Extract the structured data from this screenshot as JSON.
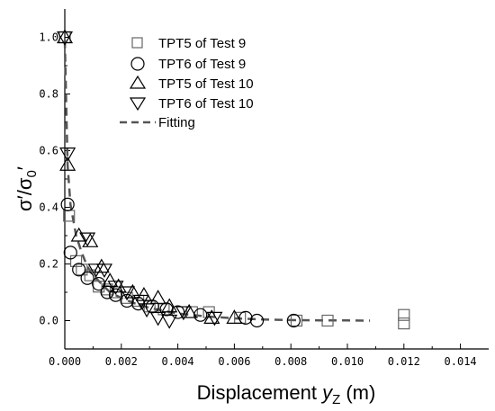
{
  "chart_data": {
    "type": "scatter",
    "title": "",
    "xlabel": {
      "main": "Displacement ",
      "italic": "y",
      "sub": "Z",
      "unit": " (m)"
    },
    "ylabel": {
      "sigma1": "σ′/σ",
      "sub": "0",
      "tail": "′"
    },
    "xlim": [
      0.0,
      0.015
    ],
    "ylim": [
      -0.1,
      1.1
    ],
    "x_ticks": [
      0.0,
      0.002,
      0.004,
      0.006,
      0.008,
      0.01,
      0.012,
      0.014
    ],
    "x_tick_labels": [
      "0.000",
      "0.002",
      "0.004",
      "0.006",
      "0.008",
      "0.010",
      "0.012",
      "0.014"
    ],
    "y_ticks": [
      0.0,
      0.2,
      0.4,
      0.6,
      0.8,
      1.0
    ],
    "y_tick_labels": [
      "0.0",
      "0.2",
      "0.4",
      "0.6",
      "0.8",
      "1.0"
    ],
    "grid": false,
    "legend_position": "top-center",
    "series": [
      {
        "name": "TPT5 of Test 9",
        "marker": "square",
        "color": "#666666",
        "points": [
          [
            0.0,
            1.0
          ],
          [
            0.00015,
            0.37
          ],
          [
            0.0004,
            0.21
          ],
          [
            0.0006,
            0.18
          ],
          [
            0.0009,
            0.16
          ],
          [
            0.0012,
            0.12
          ],
          [
            0.0015,
            0.11
          ],
          [
            0.0018,
            0.1
          ],
          [
            0.0022,
            0.08
          ],
          [
            0.0026,
            0.07
          ],
          [
            0.003,
            0.05
          ],
          [
            0.0035,
            0.04
          ],
          [
            0.0045,
            0.03
          ],
          [
            0.0051,
            0.03
          ],
          [
            0.0062,
            0.01
          ],
          [
            0.0082,
            0.0
          ],
          [
            0.0093,
            0.0
          ],
          [
            0.012,
            0.02
          ],
          [
            0.012,
            -0.01
          ]
        ]
      },
      {
        "name": "TPT6 of Test 9",
        "marker": "circle",
        "color": "#000000",
        "points": [
          [
            0.0001,
            0.41
          ],
          [
            0.0002,
            0.24
          ],
          [
            0.0005,
            0.18
          ],
          [
            0.0008,
            0.15
          ],
          [
            0.0012,
            0.13
          ],
          [
            0.0015,
            0.1
          ],
          [
            0.0018,
            0.09
          ],
          [
            0.0022,
            0.07
          ],
          [
            0.0026,
            0.06
          ],
          [
            0.0031,
            0.05
          ],
          [
            0.0036,
            0.04
          ],
          [
            0.004,
            0.03
          ],
          [
            0.0048,
            0.02
          ],
          [
            0.0064,
            0.01
          ],
          [
            0.0068,
            0.0
          ],
          [
            0.0081,
            0.0
          ]
        ]
      },
      {
        "name": "TPT5 of Test 10",
        "marker": "triangle-up",
        "color": "#000000",
        "points": [
          [
            0.0,
            1.0
          ],
          [
            0.0001,
            0.55
          ],
          [
            0.0005,
            0.3
          ],
          [
            0.0009,
            0.28
          ],
          [
            0.0013,
            0.19
          ],
          [
            0.0016,
            0.14
          ],
          [
            0.0019,
            0.12
          ],
          [
            0.0024,
            0.1
          ],
          [
            0.0028,
            0.09
          ],
          [
            0.0033,
            0.08
          ],
          [
            0.0037,
            0.05
          ],
          [
            0.0044,
            0.03
          ],
          [
            0.0052,
            0.01
          ],
          [
            0.006,
            0.01
          ]
        ]
      },
      {
        "name": "TPT6 of Test 10",
        "marker": "triangle-down",
        "color": "#000000",
        "points": [
          [
            0.0,
            1.0
          ],
          [
            0.0001,
            0.59
          ],
          [
            0.0008,
            0.29
          ],
          [
            0.0011,
            0.18
          ],
          [
            0.0014,
            0.18
          ],
          [
            0.0018,
            0.12
          ],
          [
            0.0022,
            0.1
          ],
          [
            0.0027,
            0.07
          ],
          [
            0.0029,
            0.04
          ],
          [
            0.0033,
            0.01
          ],
          [
            0.0037,
            0.0
          ],
          [
            0.0042,
            0.03
          ],
          [
            0.0053,
            0.01
          ]
        ]
      }
    ],
    "fitting": {
      "name": "Fitting",
      "style": "dashed",
      "color": "#555555",
      "points": [
        [
          0.0,
          0.99
        ],
        [
          0.0001,
          0.55
        ],
        [
          0.0002,
          0.41
        ],
        [
          0.0004,
          0.3
        ],
        [
          0.0006,
          0.24
        ],
        [
          0.0008,
          0.19
        ],
        [
          0.001,
          0.16
        ],
        [
          0.0013,
          0.13
        ],
        [
          0.0016,
          0.1
        ],
        [
          0.002,
          0.08
        ],
        [
          0.0025,
          0.06
        ],
        [
          0.003,
          0.045
        ],
        [
          0.0035,
          0.035
        ],
        [
          0.004,
          0.025
        ],
        [
          0.005,
          0.015
        ],
        [
          0.006,
          0.008
        ],
        [
          0.007,
          0.004
        ],
        [
          0.008,
          0.002
        ],
        [
          0.009,
          0.001
        ],
        [
          0.01,
          0.0005
        ],
        [
          0.0108,
          0.0
        ]
      ]
    }
  }
}
